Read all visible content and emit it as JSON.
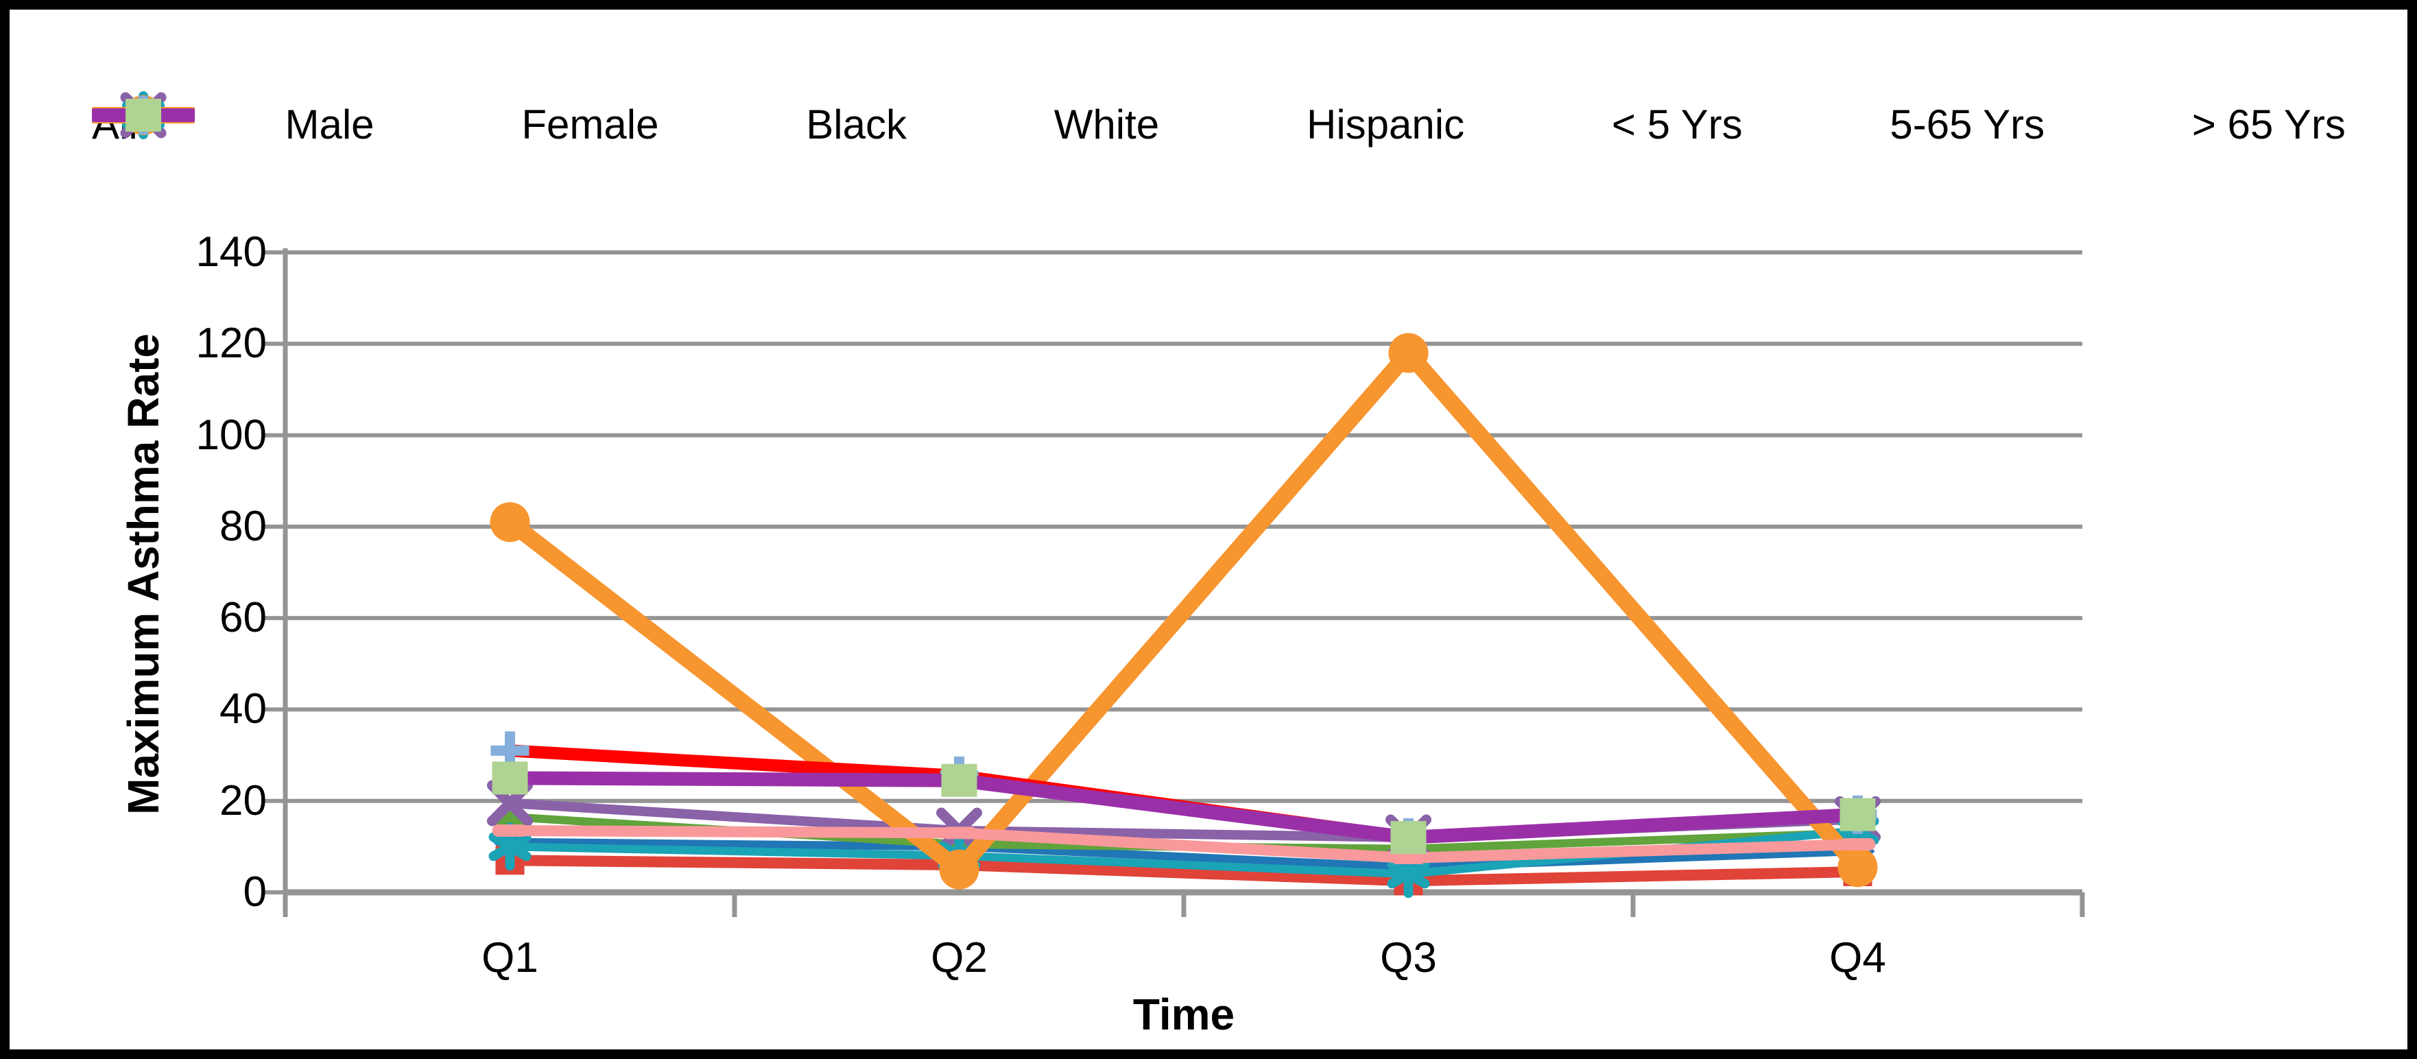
{
  "chart_data": {
    "type": "line",
    "title": "",
    "ylabel": "Maximum Asthma Rate",
    "xlabel": "Time",
    "categories": [
      "Q1",
      "Q2",
      "Q3",
      "Q4"
    ],
    "yticks": [
      0,
      20,
      40,
      60,
      80,
      100,
      120,
      140
    ],
    "ylim": [
      0,
      140
    ],
    "grid": "horizontal",
    "legend_position": "top",
    "axis_color": "#949494",
    "text_color": "#000000",
    "series": [
      {
        "name": "All",
        "color": "#2176B5",
        "marker": "diamond",
        "marker_color": "#2176B5",
        "line_width": 12,
        "values": [
          11,
          10,
          5.5,
          9
        ]
      },
      {
        "name": "Male",
        "color": "#E04338",
        "marker": "square",
        "marker_color": "#E04338",
        "line_width": 16,
        "values": [
          7,
          6,
          2.5,
          4.5
        ]
      },
      {
        "name": "Female",
        "color": "#61A33C",
        "marker": "triangle",
        "marker_color": "#61A33C",
        "line_width": 12,
        "values": [
          16.5,
          10.5,
          9.5,
          13
        ]
      },
      {
        "name": "Black",
        "color": "#8A62A8",
        "marker": "x",
        "marker_color": "#8A62A8",
        "line_width": 14,
        "values": [
          19.5,
          13.5,
          12,
          16
        ]
      },
      {
        "name": "White",
        "color": "#1BA3B6",
        "marker": "asterisk",
        "marker_color": "#1BA3B6",
        "line_width": 12,
        "values": [
          10,
          8,
          4,
          13.5
        ]
      },
      {
        "name": "Hispanic",
        "color": "#F7952F",
        "marker": "circle",
        "marker_color": "#F7952F",
        "line_width": 24,
        "values": [
          81,
          5,
          118,
          5.5
        ]
      },
      {
        "name": "< 5 Yrs",
        "color": "#FE0000",
        "marker": "plus",
        "marker_color": "#85AEDC",
        "line_width": 18,
        "values": [
          31,
          25.5,
          12,
          17
        ]
      },
      {
        "name": "5-65 Yrs",
        "color": "#F9999B",
        "marker": "dash",
        "marker_color": "#F9999B",
        "line_width": 16,
        "values": [
          13.5,
          13,
          7.5,
          10.5
        ]
      },
      {
        "name": "> 65 Yrs",
        "color": "#9A30A8",
        "marker": "square-fill",
        "marker_color": "#AFD392",
        "line_width": 20,
        "values": [
          25,
          24.5,
          12,
          17
        ]
      }
    ]
  }
}
